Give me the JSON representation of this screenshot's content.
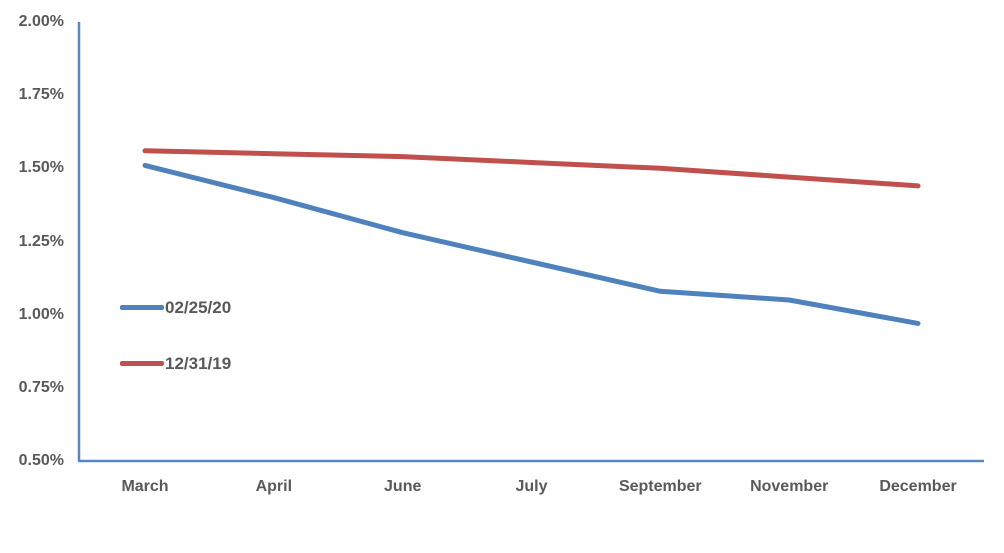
{
  "chart_data": {
    "type": "line",
    "title": "",
    "xlabel": "",
    "ylabel": "",
    "categories": [
      "March",
      "April",
      "June",
      "July",
      "September",
      "November",
      "December"
    ],
    "series": [
      {
        "name": "02/25/20",
        "color": "#4f81bd",
        "values": [
          1.51,
          1.4,
          1.28,
          1.18,
          1.08,
          1.05,
          0.97
        ]
      },
      {
        "name": "12/31/19",
        "color": "#c0504d",
        "values": [
          1.56,
          1.55,
          1.54,
          1.52,
          1.5,
          1.47,
          1.44
        ]
      }
    ],
    "ylim": [
      0.5,
      2.0
    ],
    "ytick_step": 0.25,
    "ytick_labels": [
      "2.00%",
      "1.75%",
      "1.50%",
      "1.25%",
      "1.00%",
      "0.75%",
      "0.50%"
    ],
    "ytick_values": [
      2.0,
      1.75,
      1.5,
      1.25,
      1.0,
      0.75,
      0.5
    ],
    "grid": false,
    "legend_position": "inside-left",
    "colors": {
      "axis_line": "#5a87c2",
      "text": "#595959",
      "background": "#ffffff"
    }
  }
}
